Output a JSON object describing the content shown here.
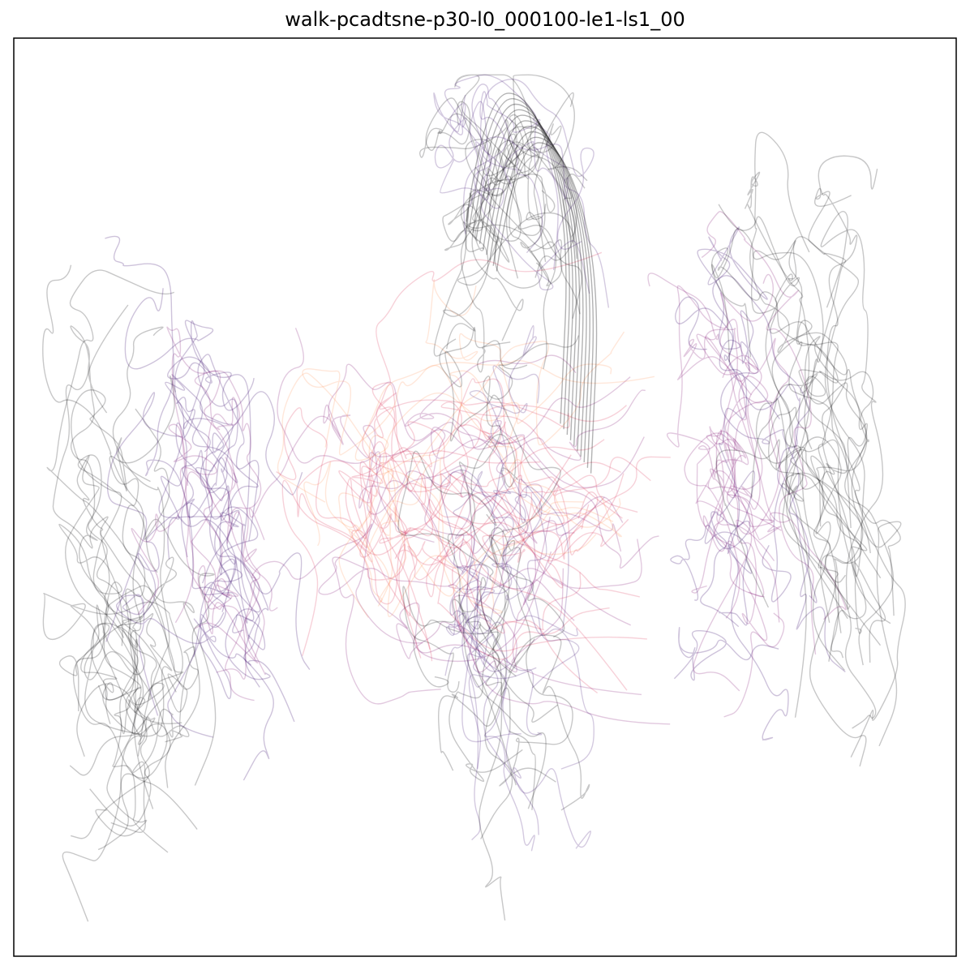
{
  "chart_data": {
    "type": "line",
    "title": "walk-pcadtsne-p30-l0_000100-le1-ls1_00",
    "xlabel": "",
    "ylabel": "",
    "grid": false,
    "legend": "none",
    "colormap": [
      "#000004",
      "#3b0f70",
      "#8c2981",
      "#de4968",
      "#fe9f6d",
      "#fcfdbf"
    ],
    "axes_visible_ticks": false,
    "trajectory_count": 140,
    "series": [
      {
        "cluster": "left-dark",
        "values": [
          [
            0.05,
            0.42
          ],
          [
            0.08,
            0.55
          ],
          [
            0.12,
            0.65
          ],
          [
            0.15,
            0.74
          ],
          [
            0.18,
            0.82
          ],
          [
            0.12,
            0.88
          ],
          [
            0.06,
            0.93
          ]
        ]
      },
      {
        "cluster": "left-purple",
        "values": [
          [
            0.16,
            0.3
          ],
          [
            0.2,
            0.4
          ],
          [
            0.24,
            0.52
          ],
          [
            0.22,
            0.62
          ],
          [
            0.26,
            0.72
          ],
          [
            0.24,
            0.8
          ]
        ]
      },
      {
        "cluster": "center-red",
        "values": [
          [
            0.28,
            0.48
          ],
          [
            0.35,
            0.4
          ],
          [
            0.45,
            0.55
          ],
          [
            0.55,
            0.5
          ],
          [
            0.65,
            0.58
          ],
          [
            0.72,
            0.47
          ]
        ]
      },
      {
        "cluster": "center-orange",
        "values": [
          [
            0.3,
            0.3
          ],
          [
            0.4,
            0.65
          ],
          [
            0.5,
            0.35
          ],
          [
            0.6,
            0.7
          ],
          [
            0.68,
            0.4
          ]
        ]
      },
      {
        "cluster": "center-arch",
        "values": [
          [
            0.48,
            0.2
          ],
          [
            0.5,
            0.06
          ],
          [
            0.55,
            0.06
          ],
          [
            0.59,
            0.2
          ],
          [
            0.58,
            0.42
          ]
        ]
      },
      {
        "cluster": "center-stem",
        "values": [
          [
            0.47,
            0.45
          ],
          [
            0.49,
            0.6
          ],
          [
            0.52,
            0.75
          ],
          [
            0.55,
            0.87
          ],
          [
            0.58,
            0.95
          ]
        ]
      },
      {
        "cluster": "right-purple",
        "values": [
          [
            0.72,
            0.25
          ],
          [
            0.76,
            0.4
          ],
          [
            0.8,
            0.55
          ],
          [
            0.78,
            0.68
          ],
          [
            0.82,
            0.8
          ]
        ]
      },
      {
        "cluster": "right-dark",
        "values": [
          [
            0.78,
            0.12
          ],
          [
            0.84,
            0.3
          ],
          [
            0.88,
            0.48
          ],
          [
            0.92,
            0.62
          ],
          [
            0.9,
            0.78
          ],
          [
            0.92,
            0.88
          ]
        ]
      }
    ]
  }
}
